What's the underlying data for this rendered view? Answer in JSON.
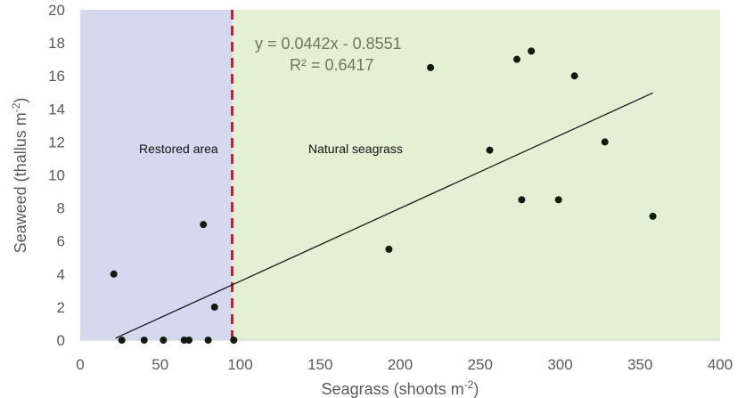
{
  "chart_data": {
    "type": "scatter",
    "xlabel_main": "Seagrass (shoots m",
    "xlabel_sup": "-2",
    "xlabel_end": ")",
    "ylabel_main": "Seaweed (thallus m",
    "ylabel_sup": "-2",
    "ylabel_end": ")",
    "xlim": [
      0,
      400
    ],
    "ylim": [
      0,
      20
    ],
    "x_ticks": [
      "0",
      "50",
      "100",
      "150",
      "200",
      "250",
      "300",
      "350",
      "400"
    ],
    "y_ticks": [
      "0",
      "2",
      "4",
      "6",
      "8",
      "10",
      "12",
      "14",
      "16",
      "18",
      "20"
    ],
    "grid": false,
    "regions": [
      {
        "label": "Restored area",
        "x_from": 0,
        "x_to": 95,
        "color": "#d5d8ee"
      },
      {
        "label": "Natural seagrass",
        "x_from": 95,
        "x_to": 400,
        "color": "#e3f0d3"
      }
    ],
    "divider_x": 95,
    "divider_color": "#e0141c",
    "trendline": {
      "slope": 0.0442,
      "intercept": -0.8551,
      "x_range": [
        22,
        358
      ],
      "equation": "y = 0.0442x - 0.8551",
      "r2": "R² = 0.6417"
    },
    "points": [
      {
        "x": 21,
        "y": 4
      },
      {
        "x": 26,
        "y": 0
      },
      {
        "x": 40,
        "y": 0
      },
      {
        "x": 52,
        "y": 0
      },
      {
        "x": 65,
        "y": 0
      },
      {
        "x": 68,
        "y": 0
      },
      {
        "x": 77,
        "y": 7
      },
      {
        "x": 80,
        "y": 0
      },
      {
        "x": 84,
        "y": 2
      },
      {
        "x": 96,
        "y": 0
      },
      {
        "x": 193,
        "y": 5.5
      },
      {
        "x": 219,
        "y": 16.5
      },
      {
        "x": 256,
        "y": 11.5
      },
      {
        "x": 273,
        "y": 17
      },
      {
        "x": 276,
        "y": 8.5
      },
      {
        "x": 282,
        "y": 17.5
      },
      {
        "x": 299,
        "y": 8.5
      },
      {
        "x": 309,
        "y": 16
      },
      {
        "x": 328,
        "y": 12
      },
      {
        "x": 358,
        "y": 7.5
      }
    ],
    "point_color": "#141a10",
    "line_color": "#1a1a1a"
  }
}
